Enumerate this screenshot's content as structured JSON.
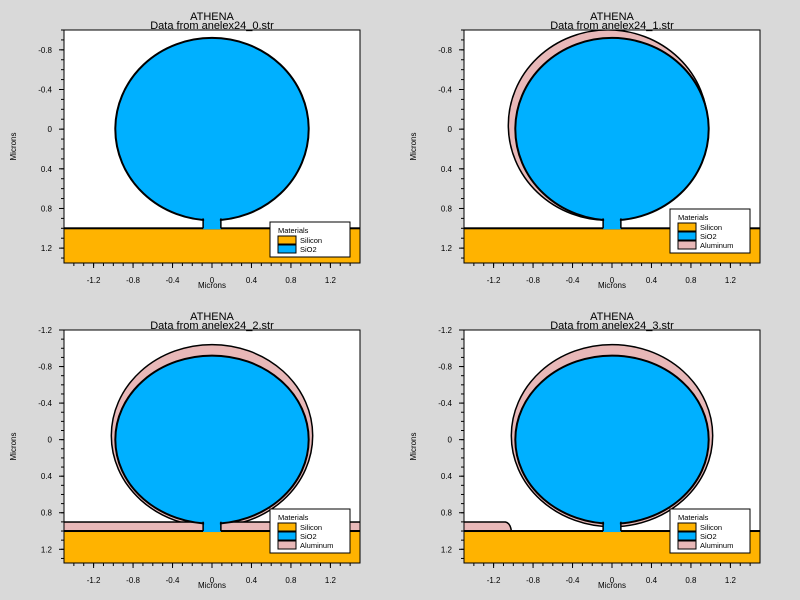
{
  "colors": {
    "background": "#d9d9d9",
    "plot_background": "#ffffff",
    "silicon": "#ffb300",
    "sio2": "#00b0ff",
    "aluminum": "#e8b8b8",
    "outline": "#000000"
  },
  "chart_data": [
    {
      "type": "cross-section",
      "title": "ATHENA",
      "subtitle": "Data from anelex24_0.str",
      "xlabel": "Microns",
      "ylabel": "Microns",
      "xlim": [
        -1.5,
        1.5
      ],
      "ylim": [
        1.35,
        -1.0
      ],
      "x_ticks": [
        "-1.2",
        "-0.8",
        "-0.4",
        "0",
        "0.4",
        "0.8",
        "1.2"
      ],
      "y_ticks": [
        "-0.8",
        "-0.4",
        "0",
        "0.4",
        "0.8",
        "1.2"
      ],
      "legend": {
        "title": "Materials",
        "placement": "bottom-right",
        "items": [
          "Silicon",
          "SiO2"
        ]
      },
      "regions": {
        "silicon_top": 1.0,
        "sio2_ball": {
          "cx": 0.0,
          "cy": 0.0,
          "rx": 0.98,
          "ry": 0.92
        },
        "sio2_stem": {
          "x0": -0.09,
          "x1": 0.09,
          "top": 0.85
        },
        "aluminum": "none"
      }
    },
    {
      "type": "cross-section",
      "title": "ATHENA",
      "subtitle": "Data from anelex24_1.str",
      "xlabel": "Microns",
      "ylabel": "Microns",
      "xlim": [
        -1.5,
        1.5
      ],
      "ylim": [
        1.35,
        -1.0
      ],
      "x_ticks": [
        "-1.2",
        "-0.8",
        "-0.4",
        "0",
        "0.4",
        "0.8",
        "1.2"
      ],
      "y_ticks": [
        "-0.8",
        "-0.4",
        "0",
        "0.4",
        "0.8",
        "1.2"
      ],
      "legend": {
        "title": "Materials",
        "placement": "bottom-right",
        "items": [
          "Silicon",
          "SiO2",
          "Aluminum"
        ]
      },
      "regions": {
        "silicon_top": 1.0,
        "sio2_ball": {
          "cx": 0.0,
          "cy": 0.0,
          "rx": 0.98,
          "ry": 0.92
        },
        "sio2_stem": {
          "x0": -0.09,
          "x1": 0.09,
          "top": 0.85
        },
        "aluminum": "thin-left-cap"
      }
    },
    {
      "type": "cross-section",
      "title": "ATHENA",
      "subtitle": "Data from anelex24_2.str",
      "xlabel": "Microns",
      "ylabel": "Microns",
      "xlim": [
        -1.5,
        1.5
      ],
      "ylim": [
        1.35,
        -1.2
      ],
      "x_ticks": [
        "-1.2",
        "-0.8",
        "-0.4",
        "0",
        "0.4",
        "0.8",
        "1.2"
      ],
      "y_ticks": [
        "-1.2",
        "-0.8",
        "-0.4",
        "0",
        "0.4",
        "0.8",
        "1.2"
      ],
      "legend": {
        "title": "Materials",
        "placement": "bottom-right",
        "items": [
          "Silicon",
          "SiO2",
          "Aluminum"
        ]
      },
      "regions": {
        "silicon_top": 1.0,
        "sio2_ball": {
          "cx": 0.0,
          "cy": 0.0,
          "rx": 0.98,
          "ry": 0.92
        },
        "sio2_stem": {
          "x0": -0.09,
          "x1": 0.09,
          "top": 0.85
        },
        "aluminum": "full-cap-and-layer"
      }
    },
    {
      "type": "cross-section",
      "title": "ATHENA",
      "subtitle": "Data from anelex24_3.str",
      "xlabel": "Microns",
      "ylabel": "Microns",
      "xlim": [
        -1.5,
        1.5
      ],
      "ylim": [
        1.35,
        -1.2
      ],
      "x_ticks": [
        "-1.2",
        "-0.8",
        "-0.4",
        "0",
        "0.4",
        "0.8",
        "1.2"
      ],
      "y_ticks": [
        "-1.2",
        "-0.8",
        "-0.4",
        "0",
        "0.4",
        "0.8",
        "1.2"
      ],
      "legend": {
        "title": "Materials",
        "placement": "bottom-right",
        "items": [
          "Silicon",
          "SiO2",
          "Aluminum"
        ]
      },
      "regions": {
        "silicon_top": 1.0,
        "sio2_ball": {
          "cx": 0.0,
          "cy": 0.0,
          "rx": 0.98,
          "ry": 0.92
        },
        "sio2_stem": {
          "x0": -0.09,
          "x1": 0.09,
          "top": 0.85
        },
        "aluminum": "cap-and-left-pad"
      }
    }
  ]
}
